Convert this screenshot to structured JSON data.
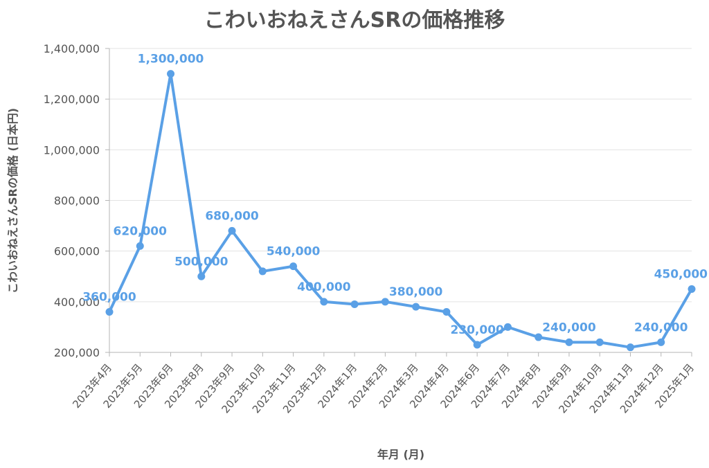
{
  "chart_data": {
    "type": "line",
    "title": "こわいおねえさんSRの価格推移",
    "xlabel": "年月 (月)",
    "ylabel": "こわいおねえさんSRの価格 (日本円)",
    "ylim": [
      200000,
      1400000
    ],
    "yticks": [
      "200,000",
      "400,000",
      "600,000",
      "800,000",
      "1,000,000",
      "1,200,000",
      "1,400,000"
    ],
    "grid": true,
    "legend": "none",
    "color": "#5aa0e6",
    "categories": [
      "2023年4月",
      "2023年5月",
      "2023年6月",
      "2023年8月",
      "2023年9月",
      "2023年10月",
      "2023年11月",
      "2023年12月",
      "2024年1月",
      "2024年2月",
      "2024年3月",
      "2024年4月",
      "2024年6月",
      "2024年7月",
      "2024年8月",
      "2024年9月",
      "2024年10月",
      "2024年11月",
      "2024年12月",
      "2025年1月"
    ],
    "series": [
      {
        "values": [
          360000,
          620000,
          1300000,
          500000,
          680000,
          520000,
          540000,
          400000,
          390000,
          400000,
          380000,
          360000,
          230000,
          300000,
          260000,
          240000,
          240000,
          220000,
          240000,
          450000
        ]
      }
    ],
    "data_labels": [
      {
        "index": 0,
        "text": "360,000"
      },
      {
        "index": 1,
        "text": "620,000"
      },
      {
        "index": 2,
        "text": "1,300,000"
      },
      {
        "index": 3,
        "text": "500,000"
      },
      {
        "index": 4,
        "text": "680,000"
      },
      {
        "index": 6,
        "text": "540,000"
      },
      {
        "index": 7,
        "text": "400,000"
      },
      {
        "index": 10,
        "text": "380,000"
      },
      {
        "index": 12,
        "text": "230,000"
      },
      {
        "index": 15,
        "text": "240,000"
      },
      {
        "index": 18,
        "text": "240,000"
      },
      {
        "index": 19,
        "text": "450,000"
      }
    ]
  }
}
